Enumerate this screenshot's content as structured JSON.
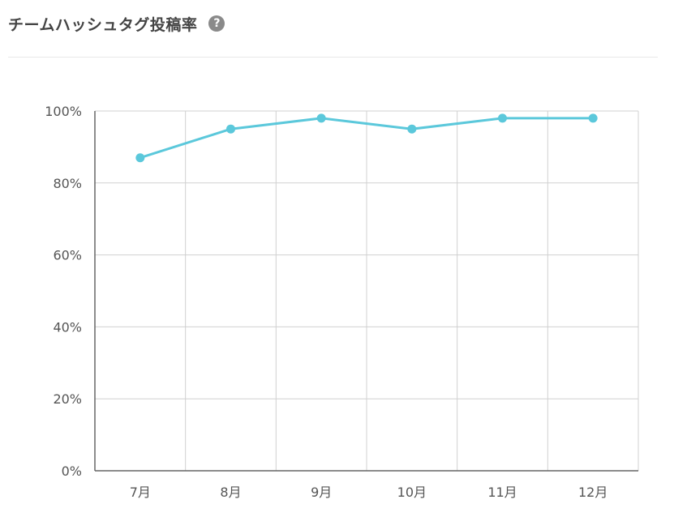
{
  "header": {
    "title": "チームハッシュタグ投稿率",
    "help_icon": "question-circle-icon"
  },
  "chart_data": {
    "type": "line",
    "title": "チームハッシュタグ投稿率",
    "categories": [
      "7月",
      "8月",
      "9月",
      "10月",
      "11月",
      "12月"
    ],
    "series": [
      {
        "values": [
          87,
          95,
          98,
          95,
          98,
          98
        ],
        "color": "#5bc8db"
      }
    ],
    "ylim": [
      0,
      100
    ],
    "yticks": [
      0,
      20,
      40,
      60,
      80,
      100
    ],
    "ytick_labels": [
      "0%",
      "20%",
      "40%",
      "60%",
      "80%",
      "100%"
    ],
    "grid": true,
    "legend": "none",
    "colors": {
      "grid": "#d0d0d0",
      "axis": "#666666",
      "line": "#5bc8db"
    }
  }
}
